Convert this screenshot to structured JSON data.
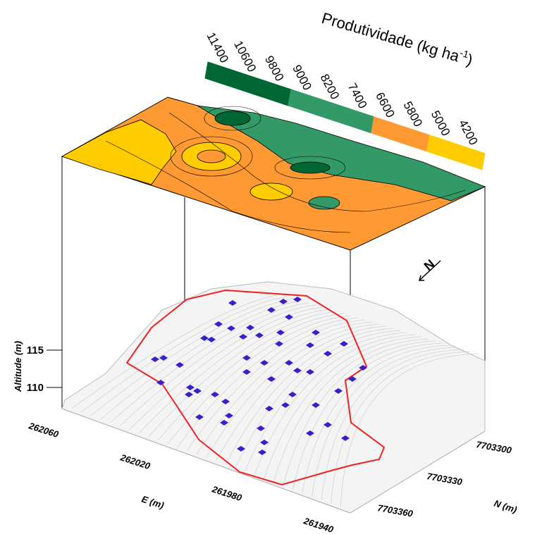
{
  "figure": {
    "colorbar": {
      "title": "Produtividade (kg ha",
      "title_sup": "-1",
      "title_end": ")",
      "ticks": [
        11400,
        10600,
        9800,
        9000,
        8200,
        7400,
        6600,
        5800,
        5000,
        4200
      ],
      "colors": [
        "#006633",
        "#006633",
        "#006633",
        "#339966",
        "#339966",
        "#339966",
        "#ff9933",
        "#ff9933",
        "#ffcc00",
        "#ffcc00"
      ]
    },
    "z_axis": {
      "label": "Altitude (m)",
      "ticks": [
        115,
        110
      ]
    },
    "e_axis": {
      "label": "E (m)",
      "ticks": [
        262060,
        262020,
        261980,
        261940
      ]
    },
    "n_axis": {
      "label": "N (m)",
      "ticks": [
        7703300,
        7703330,
        7703360
      ]
    },
    "north": "N"
  }
}
